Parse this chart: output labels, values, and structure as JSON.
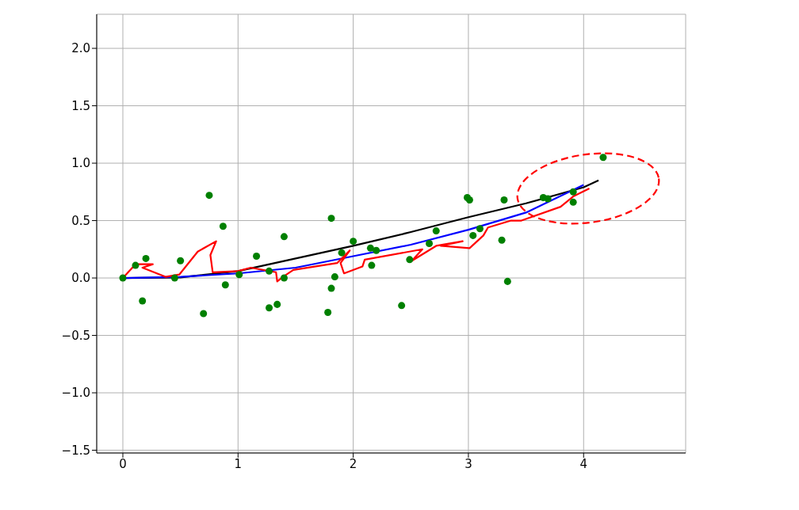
{
  "chart_data": {
    "type": "line",
    "xlim": [
      -0.227,
      4.886
    ],
    "ylim": [
      -1.524,
      2.297
    ],
    "xticks": [
      0,
      1,
      2,
      3,
      4
    ],
    "yticks": [
      {
        "value": -1.5,
        "label": "−1.5"
      },
      {
        "value": -1.0,
        "label": "−1.0"
      },
      {
        "value": -0.5,
        "label": "−0.5"
      },
      {
        "value": 0,
        "label": "0.0"
      },
      {
        "value": 0.5,
        "label": "0.5"
      },
      {
        "value": 1.0,
        "label": "1.0"
      },
      {
        "value": 1.5,
        "label": "1.5"
      },
      {
        "value": 2.0,
        "label": "2.0"
      }
    ],
    "grid": true,
    "legend": false,
    "series": [
      {
        "type": "scatter",
        "marker": "circle",
        "color": "#008000",
        "x": [
          0,
          0.11,
          0.2,
          0.17,
          0.5,
          0.45,
          0.75,
          0.87,
          0.89,
          0.7,
          1.01,
          1.16,
          1.4,
          1.27,
          1.4,
          1.27,
          1.34,
          1.81,
          1.9,
          2.0,
          1.84,
          1.81,
          1.78,
          2.15,
          2.2,
          2.16,
          2.42,
          2.49,
          2.66,
          2.72,
          2.99,
          3.01,
          3.04,
          3.1,
          3.31,
          3.29,
          3.34,
          3.65,
          3.69,
          3.91,
          3.91,
          4.17
        ],
        "values": [
          0,
          0.11,
          0.17,
          -0.2,
          0.15,
          0.0,
          0.72,
          0.45,
          -0.06,
          -0.31,
          0.03,
          0.19,
          0.36,
          0.06,
          0.0,
          -0.26,
          -0.23,
          0.52,
          0.22,
          0.32,
          0.01,
          -0.09,
          -0.3,
          0.26,
          0.24,
          0.11,
          -0.24,
          0.16,
          0.3,
          0.41,
          0.7,
          0.68,
          0.37,
          0.43,
          0.68,
          0.33,
          -0.03,
          0.7,
          0.69,
          0.75,
          0.66,
          1.05
        ]
      },
      {
        "type": "line",
        "marker": "none",
        "line_style": "solid",
        "color": "#000000",
        "x": [
          0,
          0.5,
          1,
          1.5,
          2,
          2.5,
          3,
          3.5,
          4,
          4.13
        ],
        "values": [
          0,
          0.005,
          0.06,
          0.17,
          0.28,
          0.4,
          0.53,
          0.65,
          0.79,
          0.85
        ]
      },
      {
        "type": "line",
        "marker": "none",
        "line_style": "solid",
        "color": "#0000ff",
        "x": [
          0,
          0.5,
          1,
          1.5,
          2,
          2.5,
          3,
          3.5,
          4
        ],
        "values": [
          0,
          0.01,
          0.04,
          0.09,
          0.19,
          0.29,
          0.42,
          0.57,
          0.81
        ]
      },
      {
        "type": "line",
        "marker": "none",
        "line_style": "solid",
        "color": "#ff0000",
        "x": [
          0,
          0.11,
          0.26,
          0.17,
          0.37,
          0.49,
          0.65,
          0.81,
          0.76,
          0.78,
          1.0,
          1.11,
          1.33,
          1.34,
          1.39,
          1.48,
          1.86,
          1.97,
          1.89,
          1.92,
          2.08,
          2.1,
          2.6,
          2.51,
          2.72,
          2.95,
          2.76,
          3.01,
          3.13,
          3.17,
          3.37,
          3.46,
          3.8,
          3.91,
          4.05
        ],
        "values": [
          0,
          0.12,
          0.12,
          0.09,
          0.01,
          0.03,
          0.23,
          0.32,
          0.2,
          0.05,
          0.06,
          0.09,
          0.05,
          -0.03,
          0.01,
          0.07,
          0.13,
          0.24,
          0.13,
          0.04,
          0.1,
          0.16,
          0.25,
          0.15,
          0.28,
          0.32,
          0.28,
          0.26,
          0.37,
          0.44,
          0.5,
          0.5,
          0.62,
          0.71,
          0.78
        ]
      }
    ]
  }
}
